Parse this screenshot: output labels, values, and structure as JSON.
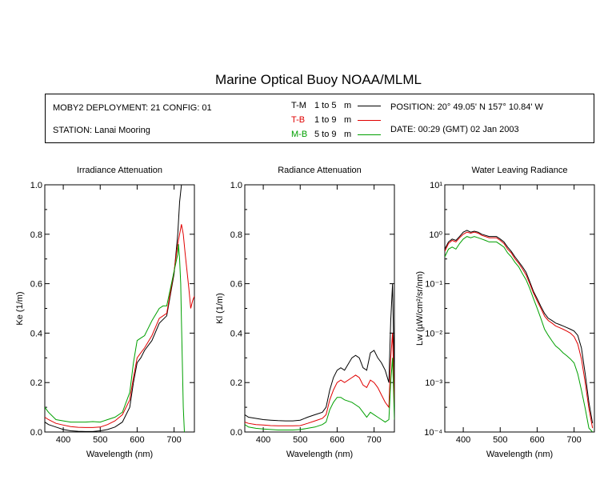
{
  "title": "Marine Optical Buoy NOAA/MLML",
  "info": {
    "deployment": "MOBY2 DEPLOYMENT: 21 CONFIG: 01",
    "station": "STATION: Lanai Mooring",
    "position": "POSITION: 20° 49.05' N   157° 10.84' W",
    "date": "DATE: 00:29 (GMT) 02 Jan 2003",
    "key": [
      {
        "code": "T-M",
        "range": "1 to 5",
        "unit": "m",
        "color": "#000000"
      },
      {
        "code": "T-B",
        "range": "1 to 9",
        "unit": "m",
        "color": "#e00000"
      },
      {
        "code": "M-B",
        "range": "5 to 9",
        "unit": "m",
        "color": "#00a000"
      }
    ]
  },
  "chart_data": [
    {
      "type": "line",
      "title": "Irradiance Attenuation",
      "xlabel": "Wavelength (nm)",
      "ylabel": "Ke  (1/m)",
      "xlim": [
        350,
        755
      ],
      "ylim": [
        0,
        1.0
      ],
      "xticks": [
        "400",
        "500",
        "600",
        "700"
      ],
      "yticks": [
        "0.0",
        "0.2",
        "0.4",
        "0.6",
        "0.8",
        "1.0"
      ],
      "series": [
        {
          "name": "T-M",
          "color": "#000000",
          "x": [
            350,
            360,
            380,
            400,
            420,
            440,
            460,
            480,
            500,
            520,
            540,
            560,
            580,
            590,
            600,
            610,
            620,
            640,
            660,
            680,
            700,
            710,
            715,
            720
          ],
          "y": [
            0.04,
            0.03,
            0.02,
            0.01,
            0.005,
            0.003,
            0.002,
            0.002,
            0.005,
            0.01,
            0.02,
            0.04,
            0.1,
            0.2,
            0.28,
            0.3,
            0.33,
            0.37,
            0.44,
            0.47,
            0.64,
            0.8,
            0.93,
            1.0
          ]
        },
        {
          "name": "T-B",
          "color": "#e00000",
          "x": [
            350,
            360,
            380,
            400,
            420,
            440,
            460,
            480,
            500,
            520,
            540,
            560,
            580,
            590,
            600,
            610,
            620,
            640,
            660,
            680,
            700,
            710,
            715,
            720,
            725,
            730,
            740,
            745,
            750,
            755
          ],
          "y": [
            0.06,
            0.05,
            0.035,
            0.028,
            0.022,
            0.019,
            0.018,
            0.018,
            0.02,
            0.03,
            0.045,
            0.07,
            0.13,
            0.22,
            0.3,
            0.32,
            0.34,
            0.39,
            0.46,
            0.48,
            0.65,
            0.76,
            0.8,
            0.84,
            0.8,
            0.72,
            0.58,
            0.5,
            0.53,
            0.55
          ]
        },
        {
          "name": "M-B",
          "color": "#00a000",
          "x": [
            350,
            360,
            380,
            400,
            420,
            440,
            460,
            480,
            500,
            520,
            540,
            560,
            580,
            590,
            600,
            610,
            620,
            630,
            640,
            660,
            670,
            680,
            700,
            710,
            712,
            715,
            718,
            720,
            722,
            725,
            728
          ],
          "y": [
            0.1,
            0.08,
            0.05,
            0.045,
            0.04,
            0.04,
            0.04,
            0.042,
            0.04,
            0.05,
            0.06,
            0.08,
            0.16,
            0.28,
            0.37,
            0.38,
            0.39,
            0.42,
            0.45,
            0.5,
            0.51,
            0.51,
            0.65,
            0.72,
            0.76,
            0.7,
            0.6,
            0.45,
            0.3,
            0.1,
            0.0
          ]
        }
      ]
    },
    {
      "type": "line",
      "title": "Radiance Attenuation",
      "xlabel": "Wavelength (nm)",
      "ylabel": "Kl  (1/m)",
      "xlim": [
        350,
        755
      ],
      "ylim": [
        0,
        1.0
      ],
      "xticks": [
        "400",
        "500",
        "600",
        "700"
      ],
      "yticks": [
        "0.0",
        "0.2",
        "0.4",
        "0.6",
        "0.8",
        "1.0"
      ],
      "series": [
        {
          "name": "T-M",
          "color": "#000000",
          "x": [
            350,
            360,
            380,
            400,
            420,
            440,
            460,
            480,
            500,
            520,
            540,
            560,
            570,
            580,
            590,
            600,
            610,
            620,
            640,
            650,
            660,
            670,
            680,
            690,
            700,
            710,
            720,
            730,
            740,
            745,
            750,
            755
          ],
          "y": [
            0.07,
            0.06,
            0.055,
            0.05,
            0.048,
            0.046,
            0.045,
            0.045,
            0.048,
            0.06,
            0.07,
            0.08,
            0.1,
            0.17,
            0.22,
            0.25,
            0.26,
            0.25,
            0.3,
            0.31,
            0.3,
            0.26,
            0.25,
            0.32,
            0.33,
            0.3,
            0.28,
            0.25,
            0.2,
            0.45,
            0.6,
            0.2
          ]
        },
        {
          "name": "T-B",
          "color": "#e00000",
          "x": [
            350,
            360,
            380,
            400,
            420,
            440,
            460,
            480,
            500,
            520,
            540,
            560,
            570,
            580,
            590,
            600,
            610,
            620,
            640,
            650,
            660,
            670,
            680,
            690,
            700,
            710,
            720,
            730,
            740,
            745,
            750,
            755
          ],
          "y": [
            0.04,
            0.035,
            0.03,
            0.028,
            0.026,
            0.025,
            0.025,
            0.025,
            0.026,
            0.035,
            0.045,
            0.055,
            0.07,
            0.13,
            0.17,
            0.2,
            0.21,
            0.2,
            0.22,
            0.23,
            0.22,
            0.19,
            0.18,
            0.21,
            0.2,
            0.18,
            0.15,
            0.12,
            0.1,
            0.3,
            0.4,
            0.1
          ]
        },
        {
          "name": "M-B",
          "color": "#00a000",
          "x": [
            350,
            360,
            380,
            400,
            420,
            440,
            460,
            480,
            500,
            520,
            540,
            560,
            570,
            580,
            590,
            600,
            610,
            620,
            640,
            650,
            660,
            670,
            680,
            690,
            700,
            710,
            720,
            730,
            740,
            745,
            750,
            755
          ],
          "y": [
            0.03,
            0.02,
            0.015,
            0.012,
            0.01,
            0.008,
            0.008,
            0.008,
            0.01,
            0.015,
            0.02,
            0.03,
            0.04,
            0.09,
            0.12,
            0.14,
            0.14,
            0.13,
            0.12,
            0.11,
            0.1,
            0.08,
            0.06,
            0.08,
            0.07,
            0.06,
            0.05,
            0.04,
            0.05,
            0.2,
            0.3,
            0.05
          ]
        }
      ]
    },
    {
      "type": "line",
      "title": "Water Leaving Radiance",
      "xlabel": "Wavelength (nm)",
      "ylabel": "Lw  (µW/cm²/sr/nm)",
      "xlim": [
        350,
        755
      ],
      "ylim": [
        0.0001,
        10
      ],
      "yscale": "log",
      "xticks": [
        "400",
        "500",
        "600",
        "700"
      ],
      "yticks": [
        "10⁻⁴",
        "10⁻³",
        "10⁻²",
        "10⁻¹",
        "10⁰",
        "10¹"
      ],
      "series": [
        {
          "name": "T-M",
          "color": "#000000",
          "x": [
            350,
            360,
            370,
            380,
            390,
            400,
            410,
            420,
            430,
            440,
            450,
            460,
            470,
            480,
            490,
            500,
            510,
            520,
            530,
            540,
            550,
            560,
            570,
            580,
            590,
            600,
            610,
            620,
            630,
            640,
            650,
            660,
            670,
            680,
            690,
            700,
            710,
            720,
            730,
            740,
            750
          ],
          "y": [
            0.5,
            0.7,
            0.8,
            0.75,
            0.9,
            1.1,
            1.2,
            1.1,
            1.15,
            1.1,
            1.0,
            0.95,
            0.9,
            0.9,
            0.9,
            0.8,
            0.7,
            0.55,
            0.45,
            0.35,
            0.28,
            0.22,
            0.17,
            0.11,
            0.07,
            0.05,
            0.035,
            0.025,
            0.02,
            0.018,
            0.016,
            0.015,
            0.014,
            0.013,
            0.012,
            0.011,
            0.009,
            0.005,
            0.0015,
            0.0004,
            0.00015
          ]
        },
        {
          "name": "T-B",
          "color": "#e00000",
          "x": [
            350,
            360,
            370,
            380,
            390,
            400,
            410,
            420,
            430,
            440,
            450,
            460,
            470,
            480,
            490,
            500,
            510,
            520,
            530,
            540,
            550,
            560,
            570,
            580,
            590,
            600,
            610,
            620,
            630,
            640,
            650,
            660,
            670,
            680,
            690,
            700,
            710,
            720,
            730,
            740,
            750
          ],
          "y": [
            0.45,
            0.65,
            0.75,
            0.7,
            0.85,
            1.0,
            1.1,
            1.05,
            1.1,
            1.05,
            0.95,
            0.9,
            0.85,
            0.85,
            0.85,
            0.75,
            0.65,
            0.5,
            0.42,
            0.32,
            0.26,
            0.2,
            0.15,
            0.1,
            0.065,
            0.045,
            0.032,
            0.022,
            0.018,
            0.016,
            0.014,
            0.013,
            0.012,
            0.011,
            0.01,
            0.0085,
            0.006,
            0.003,
            0.001,
            0.0003,
            0.00012
          ]
        },
        {
          "name": "M-B",
          "color": "#00a000",
          "x": [
            350,
            360,
            370,
            380,
            390,
            400,
            410,
            420,
            430,
            440,
            450,
            460,
            470,
            480,
            490,
            500,
            510,
            520,
            530,
            540,
            550,
            560,
            570,
            580,
            590,
            600,
            610,
            620,
            630,
            640,
            650,
            660,
            670,
            680,
            690,
            700,
            710,
            720,
            730,
            740,
            750
          ],
          "y": [
            0.35,
            0.5,
            0.55,
            0.5,
            0.65,
            0.8,
            0.9,
            0.85,
            0.9,
            0.85,
            0.8,
            0.75,
            0.7,
            0.7,
            0.7,
            0.62,
            0.55,
            0.42,
            0.35,
            0.27,
            0.22,
            0.16,
            0.12,
            0.08,
            0.05,
            0.032,
            0.02,
            0.012,
            0.009,
            0.007,
            0.0055,
            0.0048,
            0.004,
            0.0035,
            0.003,
            0.0025,
            0.0015,
            0.0007,
            0.0003,
            0.00012,
            0.0001
          ]
        }
      ]
    }
  ]
}
